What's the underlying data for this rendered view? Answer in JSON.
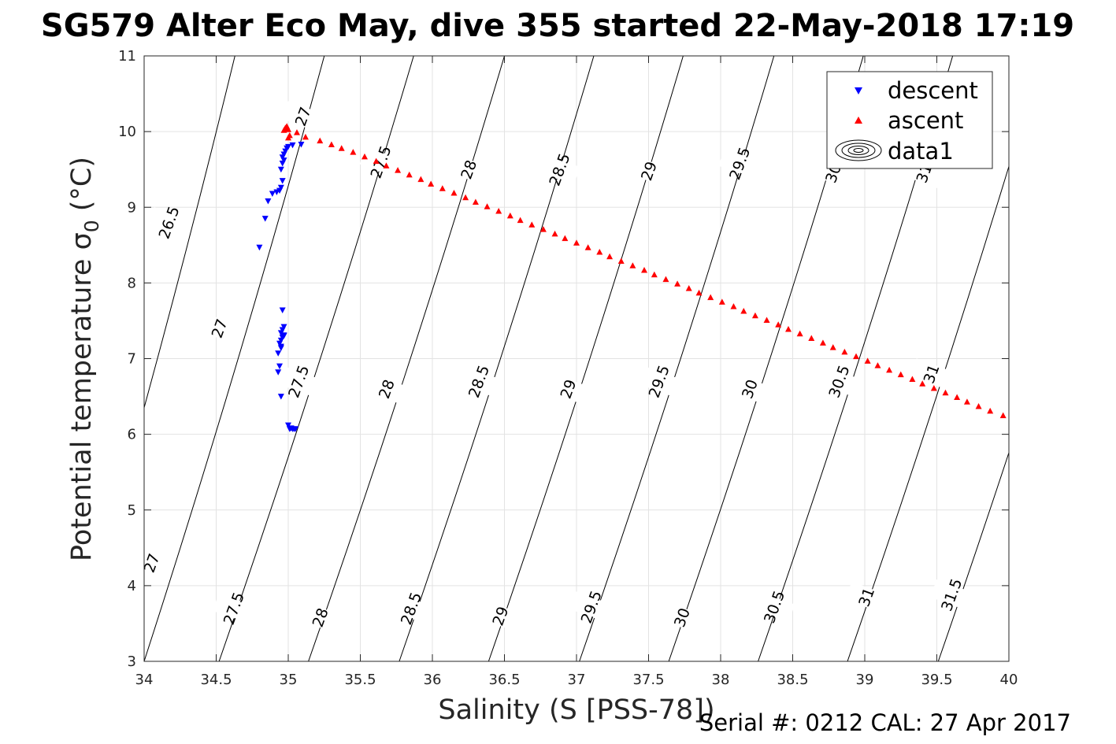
{
  "chart_data": {
    "type": "scatter",
    "title": "SG579 Alter Eco May, dive 355 started 22-May-2018 17:19",
    "xlabel": "Salinity (S [PSS-78])",
    "ylabel_main": "Potential temperature σ",
    "ylabel_sub": "0",
    "ylabel_unit": " (°C)",
    "footer": "Serial #: 0212  CAL: 27 Apr 2017",
    "xlim": [
      34,
      40
    ],
    "ylim": [
      3,
      11
    ],
    "xticks": [
      34,
      34.5,
      35,
      35.5,
      36,
      36.5,
      37,
      37.5,
      38,
      38.5,
      39,
      39.5,
      40
    ],
    "xtick_labels": [
      "34",
      "34.5",
      "35",
      "35.5",
      "36",
      "36.5",
      "37",
      "37.5",
      "38",
      "38.5",
      "39",
      "39.5",
      "40"
    ],
    "yticks": [
      3,
      4,
      5,
      6,
      7,
      8,
      9,
      10,
      11
    ],
    "ytick_labels": [
      "3",
      "4",
      "5",
      "6",
      "7",
      "8",
      "9",
      "10",
      "11"
    ],
    "grid": true,
    "legend_position": "top-right",
    "contours": [
      {
        "level": "26.5",
        "top_x": 34.63,
        "bottom_x": 33.5
      },
      {
        "level": "27",
        "top_x": 35.25,
        "bottom_x": 34.0
      },
      {
        "level": "27.5",
        "top_x": 35.87,
        "bottom_x": 34.52
      },
      {
        "level": "28",
        "top_x": 36.5,
        "bottom_x": 35.14
      },
      {
        "level": "28.5",
        "top_x": 37.12,
        "bottom_x": 35.77
      },
      {
        "level": "29",
        "top_x": 37.74,
        "bottom_x": 36.39
      },
      {
        "level": "29.5",
        "top_x": 38.37,
        "bottom_x": 37.02
      },
      {
        "level": "30",
        "top_x": 38.99,
        "bottom_x": 37.64
      },
      {
        "level": "30.5",
        "top_x": 39.61,
        "bottom_x": 38.26
      },
      {
        "level": "31",
        "top_x": 40.23,
        "bottom_x": 38.88
      },
      {
        "level": "31.5",
        "top_x": 40.86,
        "bottom_x": 39.51
      }
    ],
    "contour_labels": [
      {
        "text": "26.5",
        "x": 34.17,
        "y": 8.8
      },
      {
        "text": "27",
        "x": 34.52,
        "y": 7.4
      },
      {
        "text": "27",
        "x": 35.1,
        "y": 10.2
      },
      {
        "text": "27",
        "x": 34.05,
        "y": 4.3
      },
      {
        "text": "27.5",
        "x": 35.07,
        "y": 6.7
      },
      {
        "text": "27.5",
        "x": 35.64,
        "y": 9.6
      },
      {
        "text": "27.5",
        "x": 34.62,
        "y": 3.7
      },
      {
        "text": "28",
        "x": 35.68,
        "y": 6.6
      },
      {
        "text": "28",
        "x": 36.25,
        "y": 9.5
      },
      {
        "text": "28",
        "x": 35.22,
        "y": 3.58
      },
      {
        "text": "28.5",
        "x": 36.32,
        "y": 6.7
      },
      {
        "text": "28.5",
        "x": 36.88,
        "y": 9.5
      },
      {
        "text": "28.5",
        "x": 35.85,
        "y": 3.7
      },
      {
        "text": "29",
        "x": 36.94,
        "y": 6.6
      },
      {
        "text": "29",
        "x": 37.5,
        "y": 9.48
      },
      {
        "text": "29",
        "x": 36.47,
        "y": 3.6
      },
      {
        "text": "29.5",
        "x": 37.57,
        "y": 6.7
      },
      {
        "text": "29.5",
        "x": 38.13,
        "y": 9.58
      },
      {
        "text": "29.5",
        "x": 37.1,
        "y": 3.72
      },
      {
        "text": "30",
        "x": 38.2,
        "y": 6.6
      },
      {
        "text": "30",
        "x": 38.78,
        "y": 9.45
      },
      {
        "text": "30",
        "x": 37.73,
        "y": 3.58
      },
      {
        "text": "30.5",
        "x": 38.82,
        "y": 6.7
      },
      {
        "text": "30.5",
        "x": 38.37,
        "y": 3.72
      },
      {
        "text": "31",
        "x": 39.46,
        "y": 6.8
      },
      {
        "text": "31",
        "x": 39.41,
        "y": 9.45
      },
      {
        "text": "31",
        "x": 39.01,
        "y": 3.85
      },
      {
        "text": "31.5",
        "x": 39.6,
        "y": 3.88
      }
    ],
    "series": [
      {
        "name": "descent",
        "marker": "triangle-down",
        "color": "#0000ff",
        "x": [
          34.8,
          34.84,
          34.86,
          34.89,
          34.92,
          34.94,
          34.95,
          34.96,
          34.95,
          34.96,
          34.97,
          34.96,
          34.97,
          34.98,
          34.99,
          35.0,
          35.03,
          35.09,
          34.93,
          34.94,
          34.93,
          34.95,
          34.94,
          34.95,
          34.96,
          34.97,
          34.95,
          34.96,
          34.97,
          34.95,
          34.96,
          34.97,
          34.95,
          35.0,
          35.01,
          35.02,
          35.03,
          35.04,
          35.05
        ],
        "y": [
          8.47,
          8.85,
          9.08,
          9.18,
          9.2,
          9.22,
          9.26,
          9.35,
          9.5,
          9.58,
          9.62,
          9.66,
          9.7,
          9.74,
          9.78,
          9.8,
          9.82,
          9.83,
          6.82,
          6.9,
          7.07,
          7.14,
          7.2,
          7.24,
          7.28,
          7.3,
          7.34,
          7.38,
          7.42,
          6.5,
          7.64,
          7.31,
          7.16,
          6.12,
          6.07,
          6.08,
          6.07,
          6.07,
          6.07
        ]
      },
      {
        "name": "ascent",
        "marker": "triangle-up",
        "color": "#ff0000",
        "x": [
          34.97,
          34.98,
          34.99,
          35.0,
          35.01,
          35.0,
          35.06,
          35.12,
          35.22,
          35.3,
          35.37,
          35.45,
          35.53,
          35.61,
          35.68,
          35.76,
          35.84,
          35.92,
          35.99,
          36.07,
          36.15,
          36.23,
          36.3,
          36.38,
          36.46,
          36.54,
          36.61,
          36.69,
          36.77,
          36.85,
          36.92,
          37.0,
          37.08,
          37.16,
          37.23,
          37.31,
          37.39,
          37.47,
          37.54,
          37.62,
          37.7,
          37.78,
          37.85,
          37.93,
          38.01,
          38.09,
          38.16,
          38.24,
          38.32,
          38.4,
          38.47,
          38.55,
          38.63,
          38.71,
          38.78,
          38.86,
          38.94,
          39.02,
          39.09,
          39.17,
          39.25,
          39.33,
          39.4,
          39.48,
          39.56,
          39.64,
          39.71,
          39.79,
          39.87,
          39.96
        ],
        "y": [
          10.02,
          10.05,
          10.07,
          10.03,
          9.95,
          9.92,
          9.99,
          9.93,
          9.88,
          9.83,
          9.78,
          9.73,
          9.67,
          9.61,
          9.55,
          9.49,
          9.43,
          9.37,
          9.31,
          9.25,
          9.19,
          9.13,
          9.07,
          9.01,
          8.95,
          8.89,
          8.83,
          8.77,
          8.71,
          8.65,
          8.59,
          8.53,
          8.47,
          8.41,
          8.35,
          8.29,
          8.23,
          8.17,
          8.11,
          8.05,
          7.99,
          7.93,
          7.87,
          7.81,
          7.75,
          7.69,
          7.63,
          7.57,
          7.51,
          7.45,
          7.39,
          7.33,
          7.27,
          7.21,
          7.15,
          7.09,
          7.03,
          6.97,
          6.91,
          6.85,
          6.79,
          6.73,
          6.67,
          6.61,
          6.55,
          6.49,
          6.43,
          6.37,
          6.31,
          6.25
        ]
      },
      {
        "name": "data1",
        "marker": "contour-ellipses"
      }
    ]
  },
  "colors": {
    "descent": "#0000ff",
    "ascent": "#ff0000",
    "grid": "#e3e3e3",
    "axis": "#262626",
    "contour": "#000000"
  }
}
